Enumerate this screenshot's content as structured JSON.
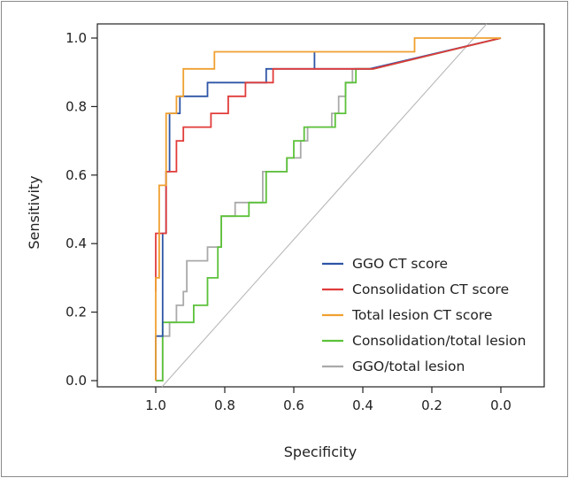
{
  "chart_data": {
    "type": "line",
    "title": "",
    "xlabel": "Specificity",
    "ylabel": "Sensitivity",
    "x_reversed": true,
    "xlim": [
      1.2,
      -0.1
    ],
    "ylim": [
      -0.03,
      1.04
    ],
    "x_ticks": [
      "1.0",
      "0.8",
      "0.6",
      "0.4",
      "0.2",
      "0.0"
    ],
    "x_tick_values": [
      1.0,
      0.8,
      0.6,
      0.4,
      0.2,
      0.0
    ],
    "y_ticks": [
      "0.0",
      "0.2",
      "0.4",
      "0.6",
      "0.8",
      "1.0"
    ],
    "y_tick_values": [
      0.0,
      0.2,
      0.4,
      0.6,
      0.8,
      1.0
    ],
    "grid": false,
    "legend_position": "bottom-right",
    "reference_line": {
      "color": "#b8b8b8",
      "points": [
        [
          1.0,
          0.0
        ],
        [
          0.0,
          1.0
        ]
      ]
    },
    "series": [
      {
        "name": "GGO/total lesion",
        "color": "#aaaaaa",
        "points": [
          [
            1.0,
            0.0
          ],
          [
            0.98,
            0.0
          ],
          [
            0.98,
            0.13
          ],
          [
            0.96,
            0.13
          ],
          [
            0.96,
            0.17
          ],
          [
            0.94,
            0.17
          ],
          [
            0.94,
            0.22
          ],
          [
            0.92,
            0.22
          ],
          [
            0.92,
            0.26
          ],
          [
            0.91,
            0.26
          ],
          [
            0.91,
            0.35
          ],
          [
            0.85,
            0.35
          ],
          [
            0.85,
            0.39
          ],
          [
            0.81,
            0.39
          ],
          [
            0.81,
            0.48
          ],
          [
            0.77,
            0.48
          ],
          [
            0.77,
            0.52
          ],
          [
            0.69,
            0.52
          ],
          [
            0.69,
            0.61
          ],
          [
            0.62,
            0.61
          ],
          [
            0.62,
            0.65
          ],
          [
            0.58,
            0.65
          ],
          [
            0.58,
            0.7
          ],
          [
            0.56,
            0.7
          ],
          [
            0.56,
            0.74
          ],
          [
            0.49,
            0.74
          ],
          [
            0.49,
            0.78
          ],
          [
            0.47,
            0.78
          ],
          [
            0.47,
            0.83
          ],
          [
            0.45,
            0.83
          ],
          [
            0.45,
            0.87
          ],
          [
            0.43,
            0.87
          ],
          [
            0.43,
            0.91
          ],
          [
            0.37,
            0.91
          ],
          [
            0.0,
            1.0
          ]
        ]
      },
      {
        "name": "Consolidation/total lesion",
        "color": "#5cc23a",
        "points": [
          [
            1.0,
            0.0
          ],
          [
            0.98,
            0.0
          ],
          [
            0.98,
            0.17
          ],
          [
            0.89,
            0.17
          ],
          [
            0.89,
            0.22
          ],
          [
            0.85,
            0.22
          ],
          [
            0.85,
            0.3
          ],
          [
            0.82,
            0.3
          ],
          [
            0.82,
            0.39
          ],
          [
            0.81,
            0.39
          ],
          [
            0.81,
            0.48
          ],
          [
            0.73,
            0.48
          ],
          [
            0.73,
            0.52
          ],
          [
            0.68,
            0.52
          ],
          [
            0.68,
            0.61
          ],
          [
            0.62,
            0.61
          ],
          [
            0.62,
            0.65
          ],
          [
            0.6,
            0.65
          ],
          [
            0.6,
            0.7
          ],
          [
            0.57,
            0.7
          ],
          [
            0.57,
            0.74
          ],
          [
            0.48,
            0.74
          ],
          [
            0.48,
            0.78
          ],
          [
            0.45,
            0.78
          ],
          [
            0.45,
            0.87
          ],
          [
            0.42,
            0.87
          ],
          [
            0.42,
            0.91
          ],
          [
            0.37,
            0.91
          ],
          [
            0.0,
            1.0
          ]
        ]
      },
      {
        "name": "GGO CT score",
        "color": "#2e55a6",
        "points": [
          [
            1.0,
            0.0
          ],
          [
            1.0,
            0.13
          ],
          [
            0.98,
            0.13
          ],
          [
            0.98,
            0.3
          ],
          [
            0.98,
            0.43
          ],
          [
            0.97,
            0.43
          ],
          [
            0.97,
            0.61
          ],
          [
            0.96,
            0.61
          ],
          [
            0.96,
            0.78
          ],
          [
            0.93,
            0.78
          ],
          [
            0.93,
            0.83
          ],
          [
            0.85,
            0.83
          ],
          [
            0.85,
            0.87
          ],
          [
            0.72,
            0.87
          ],
          [
            0.72,
            0.87
          ],
          [
            0.68,
            0.87
          ],
          [
            0.68,
            0.91
          ],
          [
            0.54,
            0.91
          ],
          [
            0.54,
            0.96
          ],
          [
            0.54,
            0.91
          ],
          [
            0.38,
            0.91
          ],
          [
            0.0,
            1.0
          ]
        ]
      },
      {
        "name": "Consolidation CT score",
        "color": "#e03c3a",
        "points": [
          [
            1.0,
            0.26
          ],
          [
            1.0,
            0.43
          ],
          [
            0.97,
            0.43
          ],
          [
            0.97,
            0.61
          ],
          [
            0.94,
            0.61
          ],
          [
            0.94,
            0.7
          ],
          [
            0.92,
            0.7
          ],
          [
            0.92,
            0.74
          ],
          [
            0.84,
            0.74
          ],
          [
            0.84,
            0.78
          ],
          [
            0.79,
            0.78
          ],
          [
            0.79,
            0.83
          ],
          [
            0.74,
            0.83
          ],
          [
            0.74,
            0.87
          ],
          [
            0.68,
            0.87
          ],
          [
            0.68,
            0.87
          ],
          [
            0.66,
            0.87
          ],
          [
            0.66,
            0.91
          ],
          [
            0.42,
            0.91
          ],
          [
            0.42,
            0.91
          ],
          [
            0.37,
            0.91
          ],
          [
            0.0,
            1.0
          ]
        ]
      },
      {
        "name": "Total lesion CT score",
        "color": "#f0a030",
        "points": [
          [
            1.0,
            0.0
          ],
          [
            1.0,
            0.3
          ],
          [
            0.99,
            0.3
          ],
          [
            0.99,
            0.57
          ],
          [
            0.97,
            0.57
          ],
          [
            0.97,
            0.78
          ],
          [
            0.94,
            0.78
          ],
          [
            0.94,
            0.83
          ],
          [
            0.92,
            0.83
          ],
          [
            0.92,
            0.91
          ],
          [
            0.83,
            0.91
          ],
          [
            0.83,
            0.96
          ],
          [
            0.25,
            0.96
          ],
          [
            0.25,
            1.0
          ],
          [
            0.0,
            1.0
          ]
        ]
      }
    ],
    "legend_order": [
      "GGO CT score",
      "Consolidation CT score",
      "Total lesion CT score",
      "Consolidation/total lesion",
      "GGO/total lesion"
    ]
  }
}
